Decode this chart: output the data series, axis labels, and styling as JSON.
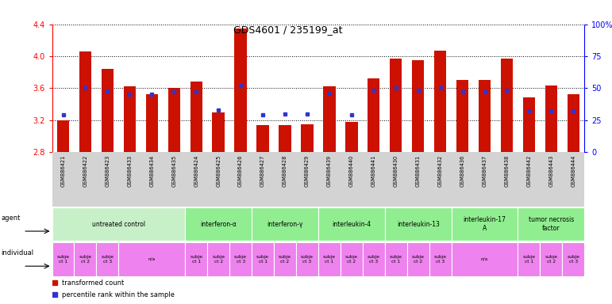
{
  "title": "GDS4601 / 235199_at",
  "samples": [
    "GSM886421",
    "GSM886422",
    "GSM886423",
    "GSM886433",
    "GSM886434",
    "GSM886435",
    "GSM886424",
    "GSM886425",
    "GSM886426",
    "GSM886427",
    "GSM886428",
    "GSM886429",
    "GSM886439",
    "GSM886440",
    "GSM886441",
    "GSM886430",
    "GSM886431",
    "GSM886432",
    "GSM886436",
    "GSM886437",
    "GSM886438",
    "GSM886442",
    "GSM886443",
    "GSM886444"
  ],
  "red_values": [
    3.2,
    4.06,
    3.84,
    3.62,
    3.52,
    3.6,
    3.68,
    3.3,
    4.35,
    3.14,
    3.14,
    3.15,
    3.62,
    3.18,
    3.72,
    3.97,
    3.95,
    4.07,
    3.7,
    3.7,
    3.97,
    3.48,
    3.63,
    3.52
  ],
  "blue_values": [
    3.27,
    3.6,
    3.56,
    3.52,
    3.52,
    3.55,
    3.55,
    3.33,
    3.63,
    3.27,
    3.28,
    3.28,
    3.53,
    3.27,
    3.57,
    3.6,
    3.57,
    3.6,
    3.55,
    3.55,
    3.57,
    3.32,
    3.32,
    3.32
  ],
  "ylim_left": [
    2.8,
    4.4
  ],
  "yticks_left": [
    2.8,
    3.2,
    3.6,
    4.0,
    4.4
  ],
  "yticks_right": [
    0,
    25,
    50,
    75,
    100
  ],
  "bar_color": "#cc1100",
  "dot_color": "#3333cc",
  "sample_bg": "#d3d3d3",
  "agent_groups": [
    {
      "label": "untreated control",
      "start": 0,
      "end": 6,
      "color": "#c8f0c8"
    },
    {
      "label": "interferon-α",
      "start": 6,
      "end": 9,
      "color": "#90ee90"
    },
    {
      "label": "interferon-γ",
      "start": 9,
      "end": 12,
      "color": "#90ee90"
    },
    {
      "label": "interleukin-4",
      "start": 12,
      "end": 15,
      "color": "#90ee90"
    },
    {
      "label": "interleukin-13",
      "start": 15,
      "end": 18,
      "color": "#90ee90"
    },
    {
      "label": "interleukin-17\nA",
      "start": 18,
      "end": 21,
      "color": "#90ee90"
    },
    {
      "label": "tumor necrosis\nfactor",
      "start": 21,
      "end": 24,
      "color": "#90ee90"
    }
  ],
  "individual_groups": [
    {
      "label": "subje\nct 1",
      "start": 0,
      "end": 1,
      "color": "#ee82ee"
    },
    {
      "label": "subje\nct 2",
      "start": 1,
      "end": 2,
      "color": "#ee82ee"
    },
    {
      "label": "subje\nct 3",
      "start": 2,
      "end": 3,
      "color": "#ee82ee"
    },
    {
      "label": "n/a",
      "start": 3,
      "end": 6,
      "color": "#ee82ee"
    },
    {
      "label": "subje\nct 1",
      "start": 6,
      "end": 7,
      "color": "#ee82ee"
    },
    {
      "label": "subje\nct 2",
      "start": 7,
      "end": 8,
      "color": "#ee82ee"
    },
    {
      "label": "subje\nct 3",
      "start": 8,
      "end": 9,
      "color": "#ee82ee"
    },
    {
      "label": "subje\nct 1",
      "start": 9,
      "end": 10,
      "color": "#ee82ee"
    },
    {
      "label": "subje\nct 2",
      "start": 10,
      "end": 11,
      "color": "#ee82ee"
    },
    {
      "label": "subje\nct 3",
      "start": 11,
      "end": 12,
      "color": "#ee82ee"
    },
    {
      "label": "subje\nct 1",
      "start": 12,
      "end": 13,
      "color": "#ee82ee"
    },
    {
      "label": "subje\nct 2",
      "start": 13,
      "end": 14,
      "color": "#ee82ee"
    },
    {
      "label": "subje\nct 3",
      "start": 14,
      "end": 15,
      "color": "#ee82ee"
    },
    {
      "label": "subje\nct 1",
      "start": 15,
      "end": 16,
      "color": "#ee82ee"
    },
    {
      "label": "subje\nct 2",
      "start": 16,
      "end": 17,
      "color": "#ee82ee"
    },
    {
      "label": "subje\nct 3",
      "start": 17,
      "end": 18,
      "color": "#ee82ee"
    },
    {
      "label": "n/a",
      "start": 18,
      "end": 21,
      "color": "#ee82ee"
    },
    {
      "label": "subje\nct 1",
      "start": 21,
      "end": 22,
      "color": "#ee82ee"
    },
    {
      "label": "subje\nct 2",
      "start": 22,
      "end": 23,
      "color": "#ee82ee"
    },
    {
      "label": "subje\nct 3",
      "start": 23,
      "end": 24,
      "color": "#ee82ee"
    }
  ]
}
